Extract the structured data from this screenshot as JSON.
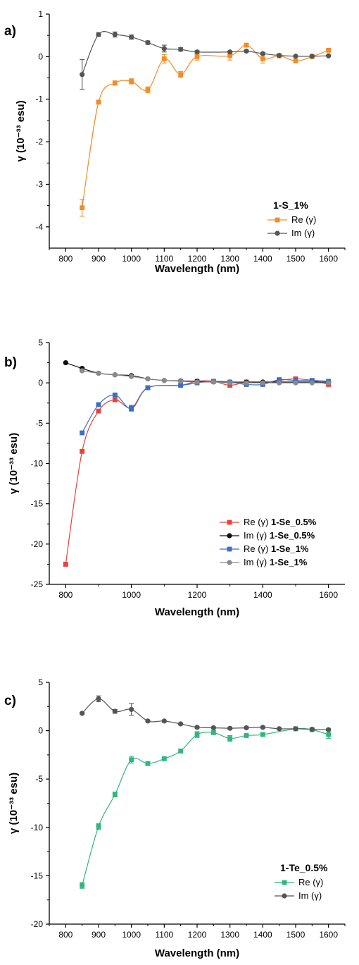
{
  "chart_data": [
    {
      "panel_label": "a)",
      "type": "line",
      "xlabel": "Wavelength (nm)",
      "ylabel": "γ (10⁻³³ esu)",
      "xlim": [
        750,
        1650
      ],
      "ylim": [
        -4.5,
        1
      ],
      "x_ticks": [
        800,
        900,
        1000,
        1100,
        1200,
        1300,
        1400,
        1500,
        1600
      ],
      "y_ticks": [
        1,
        0,
        -1,
        -2,
        -3,
        -4
      ],
      "legend_title": "1-S_1%",
      "legend_position": "bottom-right",
      "series": [
        {
          "name": "Re (γ)",
          "color": "#F28C28",
          "marker": "square",
          "x": [
            850,
            900,
            950,
            1000,
            1050,
            1100,
            1150,
            1200,
            1300,
            1350,
            1400,
            1450,
            1500,
            1550,
            1600
          ],
          "y": [
            -3.55,
            -1.07,
            -0.62,
            -0.58,
            -0.78,
            -0.05,
            -0.42,
            0.0,
            0.02,
            0.27,
            -0.05,
            0.02,
            -0.1,
            0.0,
            0.15
          ],
          "err": [
            0.2,
            0.03,
            0.05,
            0.06,
            0.07,
            0.1,
            0.07,
            0.08,
            0.1,
            0.04,
            0.1,
            0.05,
            0.04,
            0.03,
            0.04
          ]
        },
        {
          "name": "Im (γ)",
          "color": "#555555",
          "marker": "circle",
          "x": [
            850,
            900,
            950,
            1000,
            1050,
            1100,
            1150,
            1200,
            1300,
            1350,
            1400,
            1450,
            1500,
            1550,
            1600
          ],
          "y": [
            -0.42,
            0.52,
            0.52,
            0.46,
            0.33,
            0.19,
            0.17,
            0.11,
            0.11,
            0.13,
            0.07,
            0.03,
            0.01,
            0.01,
            0.02
          ],
          "err": [
            0.35,
            0.04,
            0.06,
            0.05,
            0.04,
            0.08,
            0.04,
            0.03,
            0.02,
            0.02,
            0.03,
            0.03,
            0.01,
            0.01,
            0.01
          ]
        }
      ]
    },
    {
      "panel_label": "b)",
      "type": "line",
      "xlabel": "Wavelength (nm)",
      "ylabel": "γ (10⁻³³ esu)",
      "xlim": [
        750,
        1650
      ],
      "ylim": [
        -25,
        5
      ],
      "x_ticks": [
        800,
        1000,
        1200,
        1400,
        1600
      ],
      "y_ticks": [
        5,
        0,
        -5,
        -10,
        -15,
        -20,
        -25
      ],
      "legend_position": "bottom-right",
      "series": [
        {
          "name": "Re (γ)",
          "name_bold": "1-Se_0.5%",
          "color": "#E8403A",
          "marker": "square",
          "x": [
            800,
            850,
            900,
            950,
            1000,
            1050,
            1150,
            1200,
            1250,
            1300,
            1350,
            1400,
            1450,
            1500,
            1550,
            1600
          ],
          "y": [
            -22.5,
            -8.5,
            -3.5,
            -2.1,
            -3.1,
            -0.6,
            -0.3,
            0.2,
            0.2,
            -0.3,
            0.1,
            0.0,
            0.3,
            0.5,
            0.3,
            -0.2
          ],
          "err": [
            0.25,
            0.15,
            0.2,
            0.2,
            0.3,
            0.15,
            0.1,
            0.15,
            0.15,
            0.25,
            0.15,
            0.1,
            0.2,
            0.15,
            0.15,
            0.2
          ]
        },
        {
          "name": "Im (γ)",
          "name_bold": "1-Se_0.5%",
          "color": "#111111",
          "marker": "circle",
          "x": [
            800,
            850,
            900,
            950,
            1000,
            1050,
            1100,
            1150,
            1200,
            1250,
            1300,
            1350,
            1400,
            1450,
            1500,
            1550,
            1600
          ],
          "y": [
            2.5,
            1.8,
            1.2,
            1.0,
            0.9,
            0.5,
            0.3,
            0.25,
            0.2,
            0.15,
            0.1,
            0.1,
            0.1,
            0.1,
            0.1,
            0.1,
            0.1
          ],
          "err": [
            0.1,
            0.1,
            0.1,
            0.1,
            0.1,
            0.05,
            0.05,
            0.05,
            0.05,
            0.05,
            0.05,
            0.05,
            0.05,
            0.05,
            0.05,
            0.05,
            0.05
          ]
        },
        {
          "name": "Re (γ)",
          "name_bold": "1-Se_1%",
          "color": "#3A6FC4",
          "marker": "square",
          "x": [
            850,
            900,
            950,
            1000,
            1050,
            1150,
            1200,
            1250,
            1300,
            1350,
            1400,
            1450,
            1500,
            1550,
            1600
          ],
          "y": [
            -6.2,
            -2.7,
            -1.5,
            -3.2,
            -0.6,
            -0.3,
            0.0,
            0.2,
            0.1,
            -0.2,
            -0.2,
            0.4,
            0.3,
            0.3,
            0.2
          ],
          "err": [
            0.15,
            0.15,
            0.15,
            0.3,
            0.1,
            0.1,
            0.1,
            0.1,
            0.1,
            0.1,
            0.1,
            0.1,
            0.1,
            0.1,
            0.1
          ]
        },
        {
          "name": "Im (γ)",
          "name_bold": "1-Se_1%",
          "color": "#8A8A8A",
          "marker": "circle",
          "x": [
            850,
            900,
            950,
            1000,
            1050,
            1100,
            1150,
            1200,
            1250,
            1300,
            1350,
            1400,
            1450,
            1500,
            1550,
            1600
          ],
          "y": [
            1.5,
            1.2,
            1.0,
            0.8,
            0.5,
            0.3,
            0.2,
            0.1,
            0.1,
            0.0,
            0.0,
            0.0,
            0.0,
            0.0,
            0.0,
            0.0
          ],
          "err": [
            0.1,
            0.1,
            0.1,
            0.1,
            0.05,
            0.05,
            0.05,
            0.05,
            0.05,
            0.05,
            0.05,
            0.05,
            0.05,
            0.05,
            0.05,
            0.05
          ]
        }
      ]
    },
    {
      "panel_label": "c)",
      "type": "line",
      "xlabel": "Wavelength (nm)",
      "ylabel": "γ (10⁻³³ esu)",
      "xlim": [
        750,
        1650
      ],
      "ylim": [
        -20,
        5
      ],
      "x_ticks": [
        800,
        900,
        1000,
        1100,
        1200,
        1300,
        1400,
        1500,
        1600
      ],
      "y_ticks": [
        5,
        0,
        -5,
        -10,
        -15,
        -20
      ],
      "legend_title": "1-Te_0.5%",
      "legend_position": "bottom-right",
      "series": [
        {
          "name": "Re (γ)",
          "color": "#2EB87A",
          "marker": "square",
          "x": [
            850,
            900,
            950,
            1000,
            1050,
            1100,
            1150,
            1200,
            1250,
            1300,
            1350,
            1400,
            1500,
            1550,
            1600
          ],
          "y": [
            -16.0,
            -9.9,
            -6.6,
            -3.0,
            -3.4,
            -2.9,
            -2.1,
            -0.4,
            -0.2,
            -0.8,
            -0.5,
            -0.4,
            0.2,
            0.1,
            -0.4
          ],
          "err": [
            0.3,
            0.3,
            0.25,
            0.35,
            0.15,
            0.15,
            0.2,
            0.3,
            0.2,
            0.3,
            0.15,
            0.15,
            0.2,
            0.15,
            0.4
          ]
        },
        {
          "name": "Im (γ)",
          "color": "#555555",
          "marker": "circle",
          "x": [
            850,
            900,
            950,
            1000,
            1050,
            1100,
            1150,
            1200,
            1250,
            1300,
            1350,
            1400,
            1450,
            1500,
            1550,
            1600
          ],
          "y": [
            1.8,
            3.3,
            2.0,
            2.2,
            1.0,
            1.0,
            0.7,
            0.35,
            0.3,
            0.25,
            0.3,
            0.35,
            0.2,
            0.2,
            0.15,
            0.1
          ],
          "err": [
            0.1,
            0.3,
            0.2,
            0.6,
            0.1,
            0.1,
            0.1,
            0.1,
            0.1,
            0.1,
            0.1,
            0.1,
            0.1,
            0.1,
            0.1,
            0.1
          ]
        }
      ]
    }
  ]
}
